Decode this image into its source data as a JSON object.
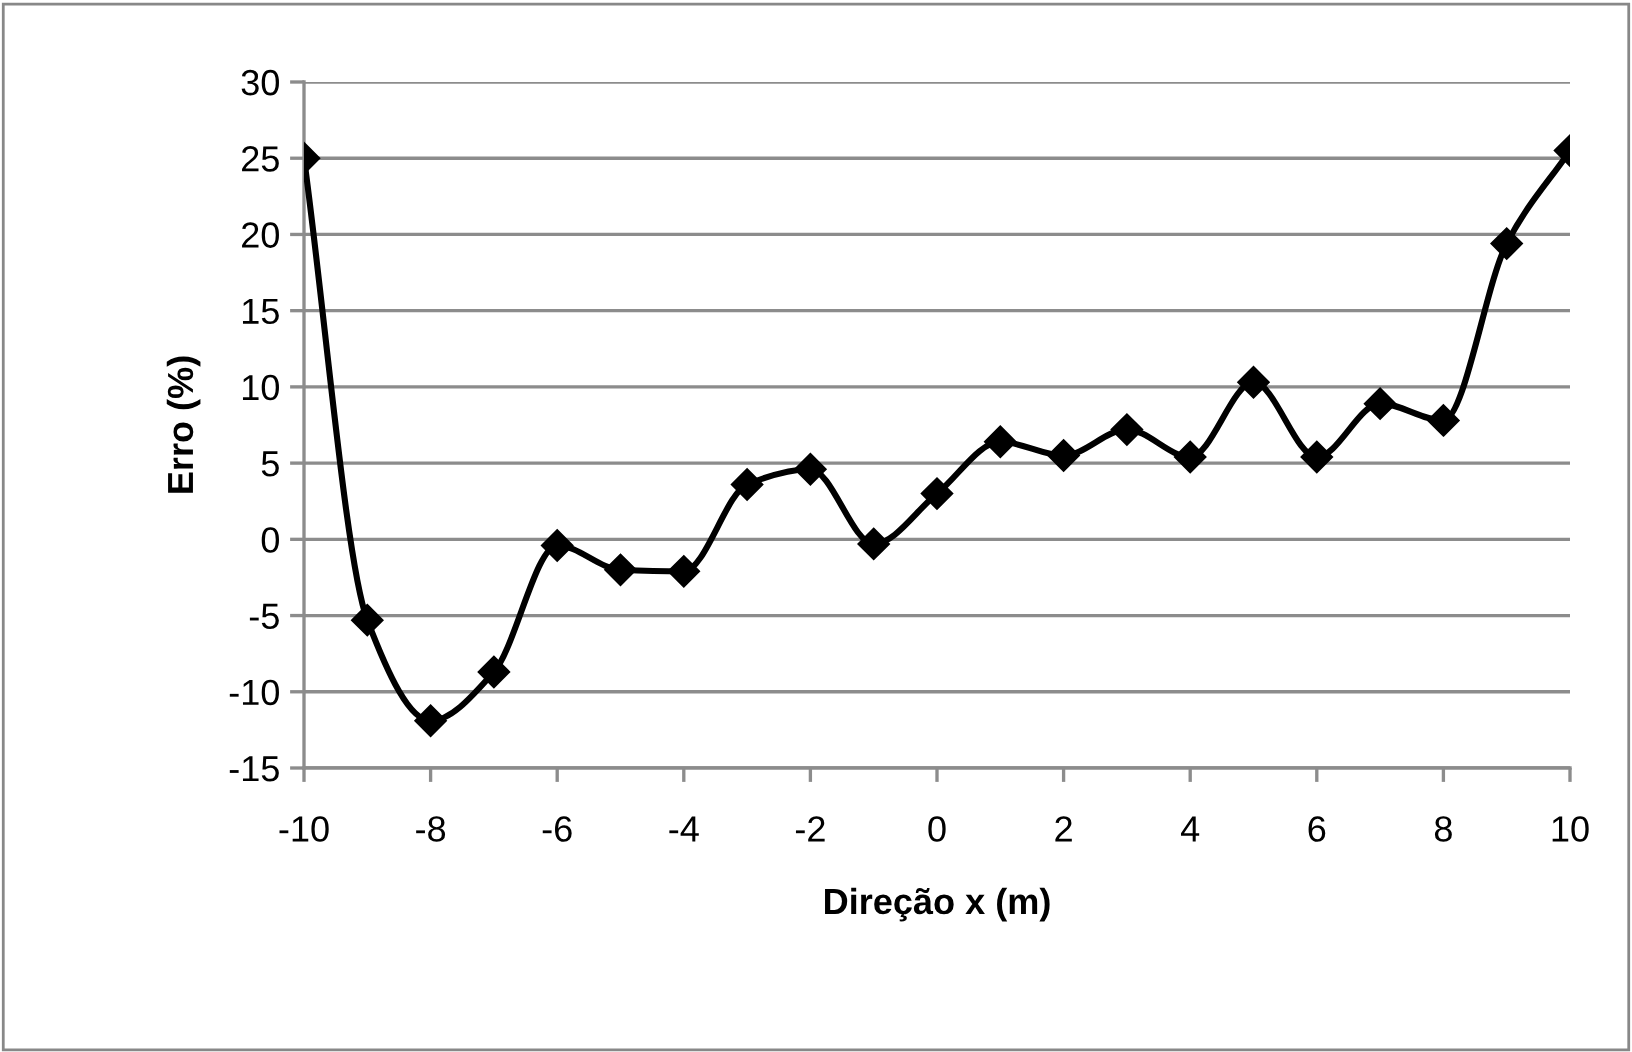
{
  "chart_data": {
    "type": "line",
    "xlabel": "Direção x (m)",
    "ylabel": "Erro (%)",
    "x": [
      -10,
      -9,
      -8,
      -7,
      -6,
      -5,
      -4,
      -3,
      -2,
      -1,
      0,
      1,
      2,
      3,
      4,
      5,
      6,
      7,
      8,
      9,
      10
    ],
    "series": [
      {
        "color": "#000000",
        "values": [
          25,
          -5.3,
          -11.9,
          -8.7,
          -0.4,
          -2.0,
          -2.1,
          3.6,
          4.6,
          -0.3,
          3.0,
          6.4,
          5.5,
          7.2,
          5.4,
          10.3,
          5.4,
          8.9,
          7.8,
          19.4,
          25.5
        ]
      }
    ],
    "xlim": [
      -10,
      10
    ],
    "xticks": [
      -10,
      -8,
      -6,
      -4,
      -2,
      0,
      2,
      4,
      6,
      8,
      10
    ],
    "ylim": [
      -15,
      30
    ],
    "yticks": [
      -15,
      -10,
      -5,
      0,
      5,
      10,
      15,
      20,
      25,
      30
    ],
    "grid": "y",
    "marker": "diamond",
    "line_style": "solid",
    "legend": false
  }
}
